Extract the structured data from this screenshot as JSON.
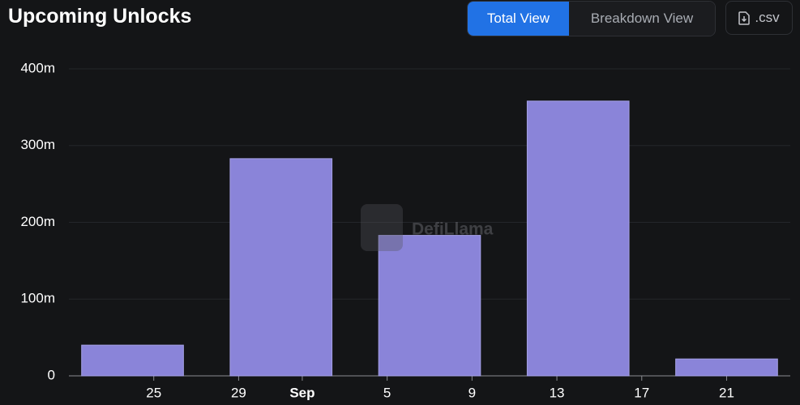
{
  "header": {
    "title": "Upcoming Unlocks",
    "buttons": [
      "Total View",
      "Breakdown View"
    ],
    "csv": ".csv"
  },
  "chart_data": {
    "type": "bar",
    "watermark": "DefiLlama",
    "x": [
      "08-24",
      "08-31",
      "09-07",
      "09-14",
      "09-21"
    ],
    "values": [
      40000000,
      283000000,
      183000000,
      358000000,
      22000000
    ],
    "color": "#8a84d9",
    "xlim": [
      "08-21",
      "09-24"
    ],
    "xticks": [
      {
        "value": "08-25",
        "label": "25"
      },
      {
        "value": "08-29",
        "label": "29"
      },
      {
        "value": "09-01",
        "label": "Sep"
      },
      {
        "value": "09-05",
        "label": "5"
      },
      {
        "value": "09-09",
        "label": "9"
      },
      {
        "value": "09-13",
        "label": "13"
      },
      {
        "value": "09-17",
        "label": "17"
      },
      {
        "value": "09-21",
        "label": "21"
      }
    ],
    "ylim": [
      0,
      400000000
    ],
    "yticks": [
      {
        "value": 0,
        "label": "0"
      },
      {
        "value": 100000000,
        "label": "100m"
      },
      {
        "value": 200000000,
        "label": "200m"
      },
      {
        "value": 300000000,
        "label": "300m"
      },
      {
        "value": 400000000,
        "label": "400m"
      }
    ],
    "grid": true
  }
}
